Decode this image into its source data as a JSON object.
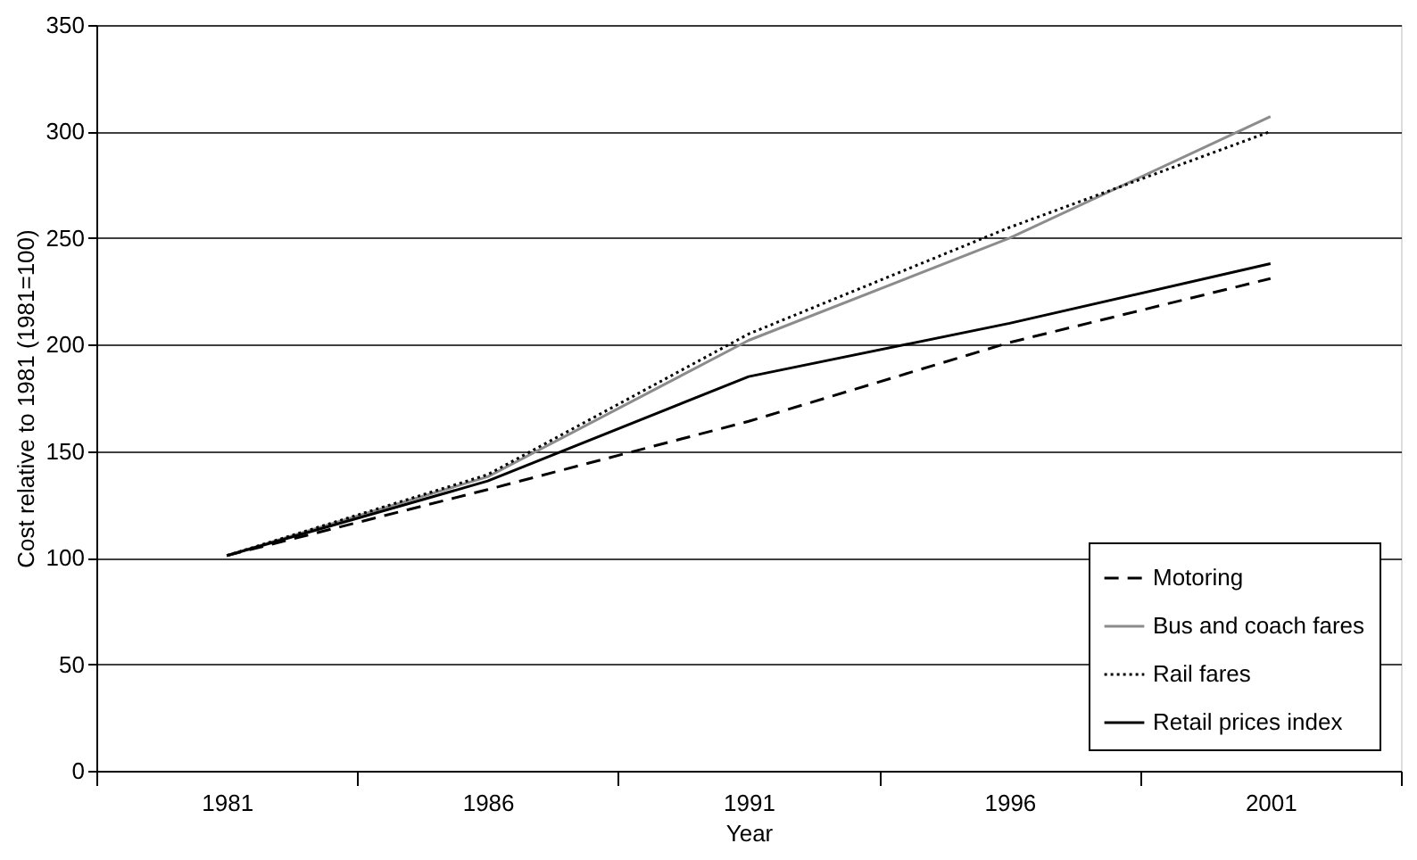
{
  "chart_data": {
    "type": "line",
    "xlabel": "Year",
    "ylabel": "Cost relative to 1981 (1981=100)",
    "categories": [
      "1981",
      "1986",
      "1991",
      "1996",
      "2001"
    ],
    "series": [
      {
        "name": "Motoring",
        "color": "#000000",
        "line_style": "dashed",
        "values": [
          101,
          132,
          164,
          201,
          231
        ]
      },
      {
        "name": "Bus and coach fares",
        "color": "#8c8c8c",
        "line_style": "solid",
        "values": [
          101,
          138,
          202,
          250,
          307
        ]
      },
      {
        "name": "Rail fares",
        "color": "#000000",
        "line_style": "dotted",
        "values": [
          101,
          139,
          205,
          255,
          300
        ]
      },
      {
        "name": "Retail prices index",
        "color": "#000000",
        "line_style": "solid",
        "values": [
          101,
          136,
          185,
          210,
          238
        ]
      }
    ],
    "ylim": [
      0,
      350
    ],
    "yticks": [
      0,
      50,
      100,
      150,
      200,
      250,
      300,
      350
    ],
    "grid": "y",
    "legend": "bottom right",
    "marker": "none"
  }
}
